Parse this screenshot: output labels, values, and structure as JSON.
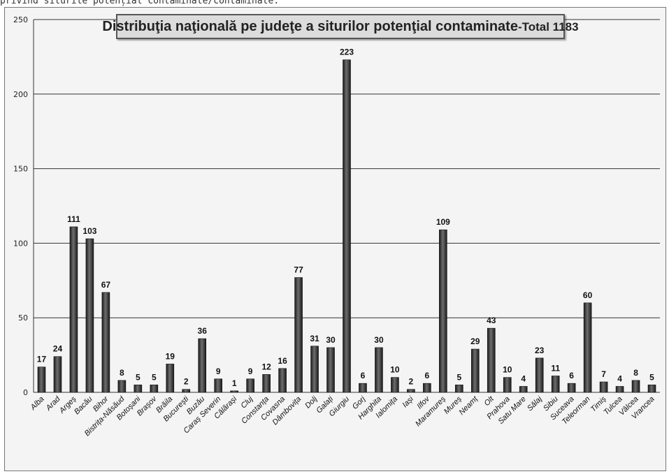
{
  "caption": "privind siturile potențial contaminate/contaminate.",
  "colors": {
    "background": "#f4f4f4",
    "gridline": "#333333",
    "bar_dark": "#1a1a1a",
    "bar_light": "#6e6e6e"
  },
  "chart_data": {
    "type": "bar",
    "title": "Distribuţia naţională pe judeţe a siturilor potenţial contaminate",
    "title_total": "-Total 1183",
    "xlabel": "",
    "ylabel": "",
    "ylim": [
      0,
      250
    ],
    "yticks": [
      0,
      50,
      100,
      150,
      200,
      250
    ],
    "grid": true,
    "data_labels": true,
    "categories": [
      "Alba",
      "Arad",
      "Argeș",
      "Bacău",
      "Bihor",
      "Bistrița-Năsăud",
      "Botoșani",
      "Brașov",
      "Brăila",
      "București",
      "Buzău",
      "Caraș Severin",
      "Călărași",
      "Cluj",
      "Constanța",
      "Covasna",
      "Dâmbovița",
      "Dolj",
      "Galați",
      "Giurgiu",
      "Gorj",
      "Harghita",
      "Ialomița",
      "Iași",
      "Ilfov",
      "Maramureș",
      "Mureș",
      "Neamț",
      "Olt",
      "Prahova",
      "Satu Mare",
      "Sălaj",
      "Sibiu",
      "Suceava",
      "Teleorman",
      "Timiș",
      "Tulcea",
      "Vâlcea",
      "Vrancea"
    ],
    "values": [
      17,
      24,
      111,
      103,
      67,
      8,
      5,
      5,
      19,
      2,
      36,
      9,
      1,
      9,
      12,
      16,
      77,
      31,
      30,
      223,
      6,
      30,
      10,
      2,
      6,
      109,
      5,
      29,
      43,
      10,
      4,
      23,
      11,
      6,
      60,
      7,
      4,
      8,
      5
    ]
  }
}
